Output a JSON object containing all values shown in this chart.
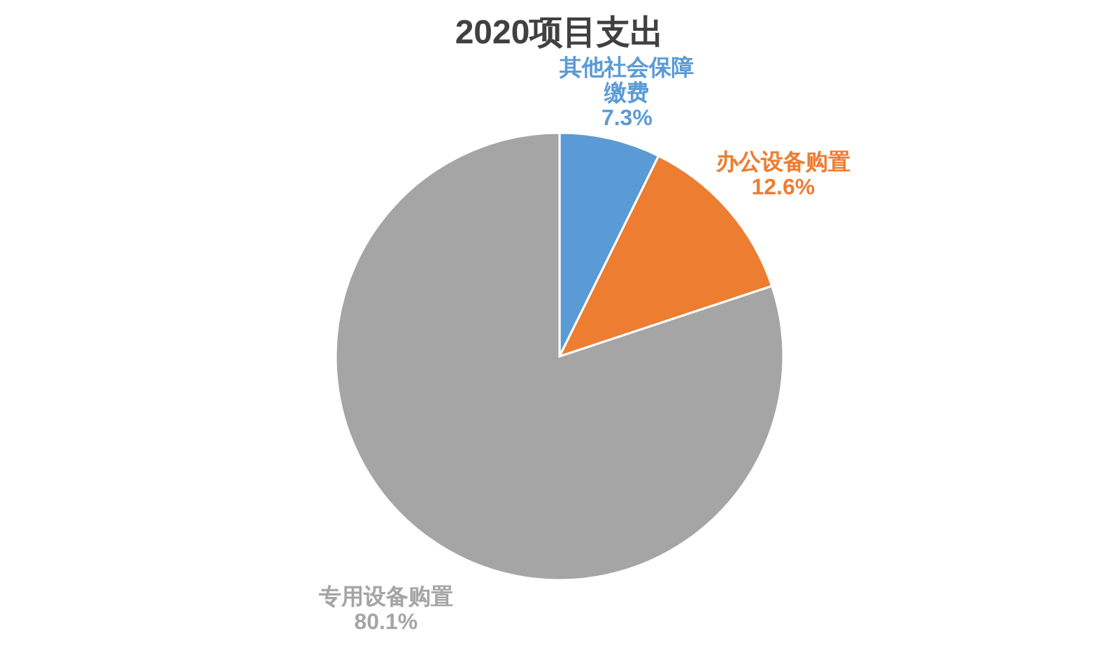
{
  "chart_data": {
    "type": "pie",
    "title": "2020项目支出",
    "categories": [
      "其他社会保障缴费",
      "办公设备购置",
      "专用设备购置"
    ],
    "values": [
      7.3,
      12.6,
      80.1
    ],
    "value_labels": [
      "7.3%",
      "12.6%",
      "80.1%"
    ],
    "colors": [
      "#5b9bd5",
      "#ed7d31",
      "#a5a5a5"
    ],
    "legend": false
  }
}
